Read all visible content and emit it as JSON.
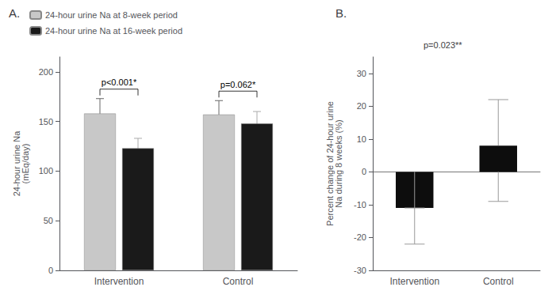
{
  "chart_data": [
    {
      "type": "bar",
      "title": "A.",
      "ylabel": "24-hour urine Na\n(mEq/day)",
      "categories": [
        "Intervention",
        "Control"
      ],
      "series": [
        {
          "name": "24-hour urine Na at 8-week period",
          "color": "#c8c8c8",
          "values": [
            158,
            157
          ],
          "errors": [
            15,
            14
          ]
        },
        {
          "name": "24-hour urine Na at 16-week period",
          "color": "#1a1a1a",
          "values": [
            123,
            148
          ],
          "errors": [
            10,
            12
          ]
        }
      ],
      "annotations": [
        "p<0.001*",
        "p=0.062*"
      ],
      "ylim": [
        0,
        215
      ],
      "yticks": [
        0,
        50,
        100,
        150,
        200
      ],
      "legend": "upper left",
      "grid": false
    },
    {
      "type": "floating_bar",
      "title": "B.",
      "ylabel": "Percent change of 24-hour urine\nNa during 8 weeks (%)",
      "categories": [
        "Intervention",
        "Control"
      ],
      "bar_bottom": [
        -11,
        0
      ],
      "bar_top": [
        0,
        8
      ],
      "whisker_low": [
        -22,
        -9
      ],
      "whisker_high": [
        -11,
        22
      ],
      "color": "#0d0d0d",
      "annotation": "p=0.023**",
      "ylim": [
        -30,
        35
      ],
      "yticks": [
        -30,
        -20,
        -10,
        0,
        10,
        20,
        30
      ],
      "grid": false
    }
  ]
}
